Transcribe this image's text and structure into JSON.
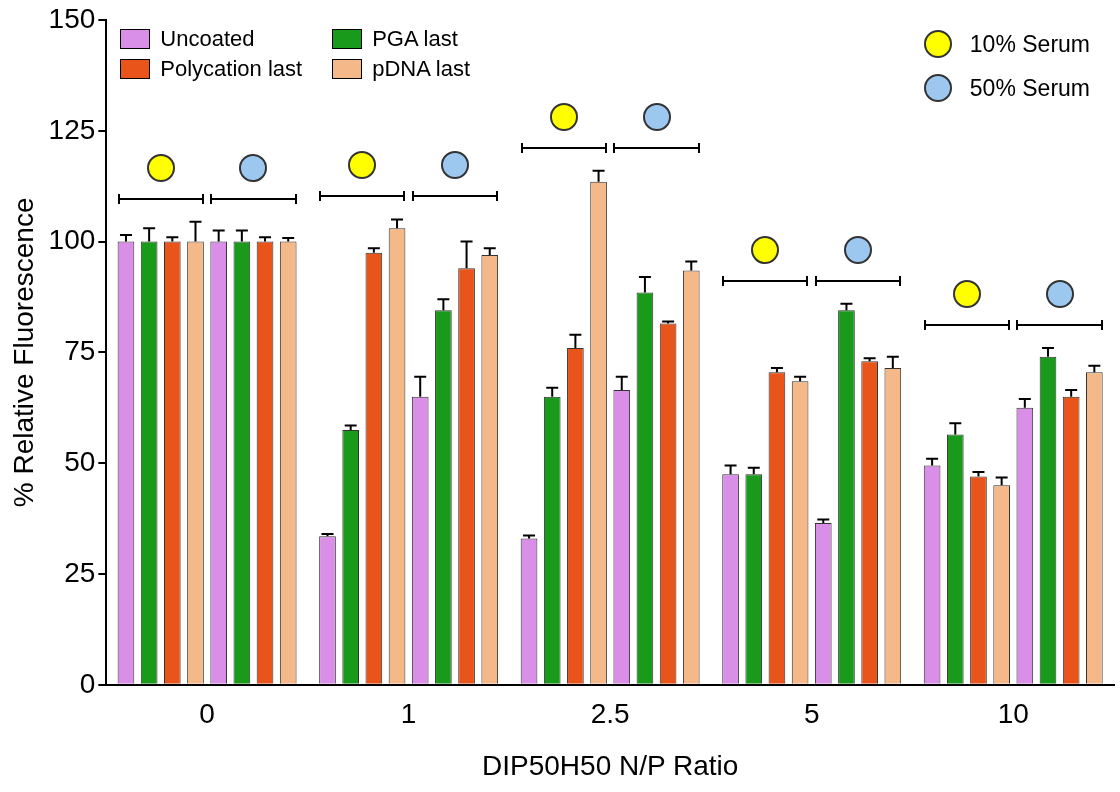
{
  "chart_data": {
    "type": "bar",
    "xlabel": "DIP50H50 N/P Ratio",
    "ylabel": "% Relative Fluorescence",
    "categories": [
      "0",
      "1",
      "2.5",
      "5",
      "10"
    ],
    "series": [
      {
        "name": "Uncoated",
        "color": "#d98ee8",
        "values": [
          100,
          33.5,
          33,
          47.5,
          49.5
        ],
        "errors": [
          1.5,
          0.5,
          0.7,
          2,
          1.5
        ]
      },
      {
        "name": "PGA last",
        "color": "#1a9a1a",
        "values": [
          100,
          57.5,
          65,
          47.5,
          56.5
        ],
        "errors": [
          3,
          1,
          2,
          1.5,
          2.5
        ]
      },
      {
        "name": "Polycation last",
        "color": "#e8541a",
        "values": [
          100,
          97.5,
          76,
          70.5,
          47
        ],
        "errors": [
          1,
          1,
          3,
          1,
          1
        ]
      },
      {
        "name": "pDNA last",
        "color": "#f5b888",
        "values": [
          100,
          103,
          113.5,
          68.5,
          45
        ],
        "errors": [
          4.5,
          2,
          2.5,
          1,
          1.8
        ]
      },
      {
        "color": "#d98ee8",
        "values": [
          100,
          65,
          66.5,
          36.5,
          62.5
        ],
        "errors": [
          2.5,
          4.5,
          3,
          0.8,
          2
        ]
      },
      {
        "color": "#1a9a1a",
        "values": [
          100,
          84.5,
          88.5,
          84.5,
          74
        ],
        "errors": [
          2.5,
          2.5,
          3.5,
          1.5,
          2
        ]
      },
      {
        "color": "#e8541a",
        "values": [
          100,
          94,
          81.5,
          73,
          65
        ],
        "errors": [
          1,
          6,
          0.5,
          0.7,
          1.5
        ]
      },
      {
        "color": "#f5b888",
        "values": [
          100,
          97,
          93.5,
          71.5,
          70.5
        ],
        "errors": [
          0.8,
          1.5,
          2,
          2.5,
          1.5
        ]
      }
    ],
    "annotations": [
      "10% Serum",
      "50% Serum"
    ],
    "ylim": [
      0,
      150
    ],
    "yticks": [
      0,
      25,
      50,
      75,
      100,
      125,
      150
    ],
    "grid": false,
    "legend": "top left"
  }
}
